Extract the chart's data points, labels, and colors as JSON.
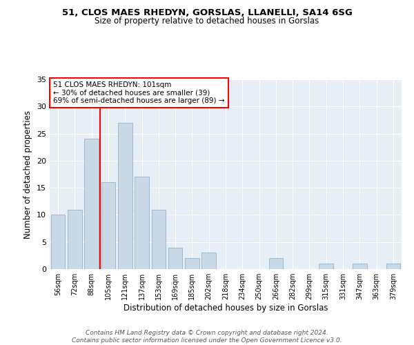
{
  "title1": "51, CLOS MAES RHEDYN, GORSLAS, LLANELLI, SA14 6SG",
  "title2": "Size of property relative to detached houses in Gorslas",
  "xlabel": "Distribution of detached houses by size in Gorslas",
  "ylabel": "Number of detached properties",
  "categories": [
    "56sqm",
    "72sqm",
    "88sqm",
    "105sqm",
    "121sqm",
    "137sqm",
    "153sqm",
    "169sqm",
    "185sqm",
    "202sqm",
    "218sqm",
    "234sqm",
    "250sqm",
    "266sqm",
    "282sqm",
    "299sqm",
    "315sqm",
    "331sqm",
    "347sqm",
    "363sqm",
    "379sqm"
  ],
  "values": [
    10,
    11,
    24,
    16,
    27,
    17,
    11,
    4,
    2,
    3,
    0,
    0,
    0,
    2,
    0,
    0,
    1,
    0,
    1,
    0,
    1
  ],
  "bar_color": "#c9d9e8",
  "bar_edge_color": "#a0b8cc",
  "vline_x_index": 3,
  "vline_color": "red",
  "annotation_text": "51 CLOS MAES RHEDYN: 101sqm\n← 30% of detached houses are smaller (39)\n69% of semi-detached houses are larger (89) →",
  "annotation_box_color": "white",
  "annotation_box_edge": "red",
  "ylim": [
    0,
    35
  ],
  "yticks": [
    0,
    5,
    10,
    15,
    20,
    25,
    30,
    35
  ],
  "footer": "Contains HM Land Registry data © Crown copyright and database right 2024.\nContains public sector information licensed under the Open Government Licence v3.0.",
  "bg_color": "#e8eef5"
}
